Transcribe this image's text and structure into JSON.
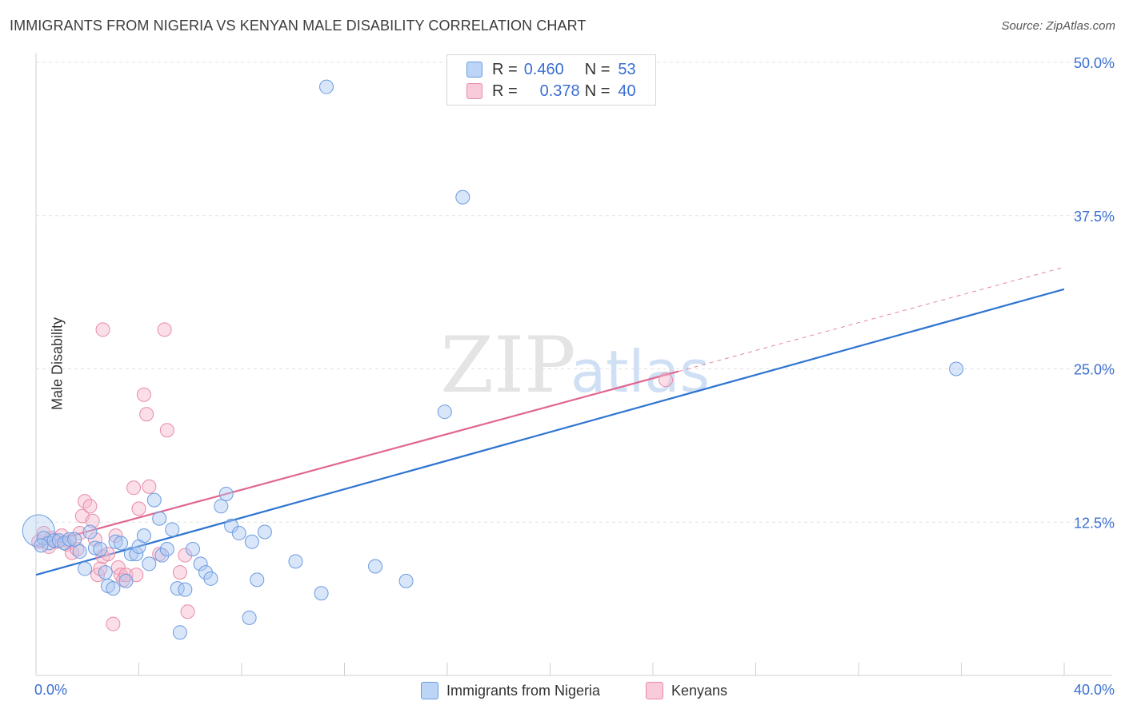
{
  "title": "IMMIGRANTS FROM NIGERIA VS KENYAN MALE DISABILITY CORRELATION CHART",
  "source": "Source: ZipAtlas.com",
  "watermark": {
    "zip": "ZIP",
    "atlas": "atlas"
  },
  "legend": {
    "rows": [
      {
        "r_label": "R =",
        "r_value": "0.460",
        "n_label": "N =",
        "n_value": "53"
      },
      {
        "r_label": "R =",
        "r_value": "0.378",
        "n_label": "N =",
        "n_value": "40"
      }
    ]
  },
  "colors": {
    "nigeria_fill": "#aac8f2",
    "nigeria_stroke": "#6a9be0",
    "nigeria_line": "#2f74d0",
    "kenya_fill": "#f6b8cc",
    "kenya_stroke": "#e88aa8",
    "kenya_line": "#e0668f",
    "axis_label": "#3a6fd1"
  },
  "chart_data": {
    "type": "scatter",
    "title": "IMMIGRANTS FROM NIGERIA VS KENYAN MALE DISABILITY CORRELATION CHART",
    "xlabel": "",
    "ylabel": "Male Disability",
    "xlim": [
      0,
      40
    ],
    "ylim": [
      0,
      50
    ],
    "x_tick_labels": [
      "0.0%",
      "40.0%"
    ],
    "y_ticks": [
      12.5,
      25.0,
      37.5,
      50.0
    ],
    "y_tick_labels": [
      "12.5%",
      "25.0%",
      "37.5%",
      "50.0%"
    ],
    "series": [
      {
        "name": "Immigrants from Nigeria",
        "r": 0.46,
        "n": 53,
        "trend": {
          "x": [
            0,
            40
          ],
          "y": [
            8.2,
            31.5
          ]
        },
        "points": [
          [
            0.1,
            11.8
          ],
          [
            0.3,
            11.2
          ],
          [
            0.5,
            10.8
          ],
          [
            0.7,
            11.0
          ],
          [
            0.9,
            11.0
          ],
          [
            1.1,
            10.8
          ],
          [
            1.3,
            11.1
          ],
          [
            1.5,
            11.1
          ],
          [
            1.7,
            10.1
          ],
          [
            1.9,
            8.7
          ],
          [
            2.1,
            11.7
          ],
          [
            2.3,
            10.4
          ],
          [
            2.5,
            10.3
          ],
          [
            2.7,
            8.4
          ],
          [
            2.8,
            7.3
          ],
          [
            3.0,
            7.1
          ],
          [
            3.1,
            10.9
          ],
          [
            3.3,
            10.8
          ],
          [
            3.5,
            7.7
          ],
          [
            3.7,
            9.9
          ],
          [
            3.9,
            9.9
          ],
          [
            4.0,
            10.5
          ],
          [
            4.2,
            11.4
          ],
          [
            4.4,
            9.1
          ],
          [
            4.6,
            14.3
          ],
          [
            4.8,
            12.8
          ],
          [
            4.9,
            9.8
          ],
          [
            5.1,
            10.3
          ],
          [
            5.3,
            11.9
          ],
          [
            5.5,
            7.1
          ],
          [
            5.6,
            3.5
          ],
          [
            5.8,
            7.0
          ],
          [
            6.1,
            10.3
          ],
          [
            6.4,
            9.1
          ],
          [
            6.6,
            8.4
          ],
          [
            6.8,
            7.9
          ],
          [
            7.2,
            13.8
          ],
          [
            7.4,
            14.8
          ],
          [
            7.6,
            12.2
          ],
          [
            7.9,
            11.6
          ],
          [
            8.3,
            4.7
          ],
          [
            8.4,
            10.9
          ],
          [
            8.6,
            7.8
          ],
          [
            8.9,
            11.7
          ],
          [
            10.1,
            9.3
          ],
          [
            11.1,
            6.7
          ],
          [
            11.3,
            48.0
          ],
          [
            13.2,
            8.9
          ],
          [
            14.4,
            7.7
          ],
          [
            15.9,
            21.5
          ],
          [
            16.6,
            39.0
          ],
          [
            35.8,
            25.0
          ],
          [
            0.2,
            10.6
          ]
        ]
      },
      {
        "name": "Kenyans",
        "r": 0.378,
        "n": 40,
        "trend": {
          "x": [
            0,
            25
          ],
          "y": [
            10.6,
            24.8
          ]
        },
        "trend_ext": {
          "x": [
            25,
            40
          ],
          "y": [
            24.8,
            33.3
          ]
        },
        "points": [
          [
            0.1,
            10.9
          ],
          [
            0.3,
            11.6
          ],
          [
            0.5,
            10.5
          ],
          [
            0.6,
            11.2
          ],
          [
            0.8,
            10.9
          ],
          [
            1.0,
            11.4
          ],
          [
            1.2,
            10.7
          ],
          [
            1.3,
            10.9
          ],
          [
            1.4,
            10.0
          ],
          [
            1.6,
            10.3
          ],
          [
            1.7,
            11.6
          ],
          [
            1.8,
            13.0
          ],
          [
            1.9,
            14.2
          ],
          [
            2.1,
            13.8
          ],
          [
            2.2,
            12.6
          ],
          [
            2.3,
            11.1
          ],
          [
            2.4,
            8.2
          ],
          [
            2.5,
            8.7
          ],
          [
            2.6,
            9.7
          ],
          [
            2.8,
            9.9
          ],
          [
            3.0,
            4.2
          ],
          [
            3.1,
            11.4
          ],
          [
            3.2,
            8.8
          ],
          [
            3.3,
            8.2
          ],
          [
            3.4,
            7.8
          ],
          [
            3.5,
            8.2
          ],
          [
            3.8,
            15.3
          ],
          [
            3.9,
            8.2
          ],
          [
            4.0,
            13.6
          ],
          [
            4.2,
            22.9
          ],
          [
            4.3,
            21.3
          ],
          [
            4.4,
            15.4
          ],
          [
            4.8,
            9.9
          ],
          [
            5.0,
            28.2
          ],
          [
            5.1,
            20.0
          ],
          [
            5.6,
            8.4
          ],
          [
            5.8,
            9.8
          ],
          [
            5.9,
            5.2
          ],
          [
            2.6,
            28.2
          ],
          [
            24.5,
            24.1
          ]
        ]
      }
    ]
  },
  "bottom_legend": [
    {
      "label": "Immigrants from Nigeria"
    },
    {
      "label": "Kenyans"
    }
  ]
}
